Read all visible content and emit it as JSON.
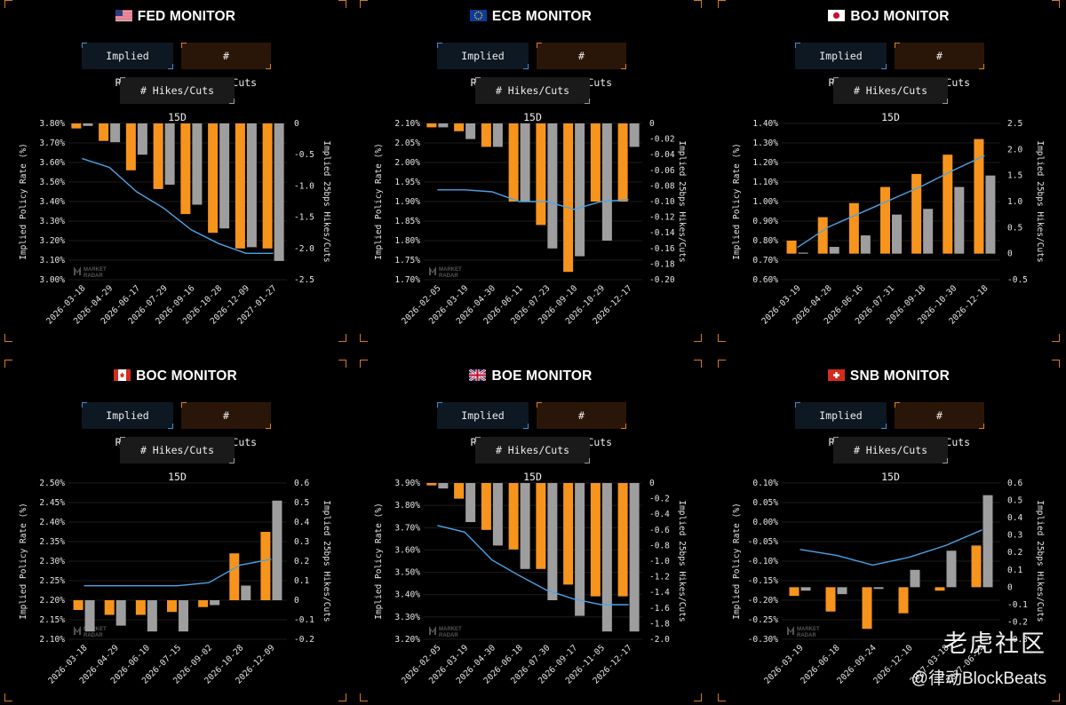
{
  "panels": [
    {
      "title": "FED MONITOR",
      "flag": "us",
      "buttons": {
        "implied": "Implied Rate",
        "hikes": "# Hikes/Cuts",
        "hikes15": "# Hikes/Cuts 15D"
      },
      "chart_data": {
        "type": "bar",
        "categories": [
          "2026-03-18",
          "2026-04-29",
          "2026-06-17",
          "2026-07-29",
          "2026-09-16",
          "2026-10-28",
          "2026-12-09",
          "2027-01-27"
        ],
        "ylabel": "Implied Policy Rate (%)",
        "y2label": "Implied 25bps Hikes/Cuts",
        "yticks": [
          "3.80%",
          "3.70%",
          "3.60%",
          "3.50%",
          "3.40%",
          "3.30%",
          "3.20%",
          "3.10%",
          "3.00%"
        ],
        "y2ticks": [
          "0",
          "-0.5",
          "-1.0",
          "-1.5",
          "-2.0",
          "-2.5"
        ],
        "ylim": [
          3.0,
          3.8
        ],
        "y2lim": [
          -2.5,
          0
        ],
        "series": [
          {
            "name": "# Hikes/Cuts",
            "color": "#f7941d",
            "values": [
              -0.08,
              -0.28,
              -0.75,
              -1.05,
              -1.45,
              -1.75,
              -2.0,
              -2.0
            ]
          },
          {
            "name": "# Hikes/Cuts 15D",
            "color": "#9e9e9e",
            "values": [
              -0.04,
              -0.3,
              -0.5,
              -0.98,
              -1.3,
              -1.68,
              -1.98,
              -2.2
            ]
          },
          {
            "name": "Implied Rate",
            "color": "#4da3e8",
            "values": [
              3.62,
              3.575,
              3.45,
              3.365,
              3.255,
              3.185,
              3.135,
              3.135
            ]
          }
        ],
        "watermark": [
          "MARKET",
          "RADAR"
        ]
      }
    },
    {
      "title": "ECB MONITOR",
      "flag": "eu",
      "buttons": {
        "implied": "Implied Rate",
        "hikes": "# Hikes/Cuts",
        "hikes15": "# Hikes/Cuts 15D"
      },
      "chart_data": {
        "type": "bar",
        "categories": [
          "2026-02-05",
          "2026-03-19",
          "2026-04-30",
          "2026-06-11",
          "2026-07-23",
          "2026-09-10",
          "2026-10-29",
          "2026-12-17"
        ],
        "ylabel": "Implied Policy Rate (%)",
        "y2label": "Implied 25bps Hikes/Cuts",
        "yticks": [
          "2.10%",
          "2.05%",
          "2.00%",
          "1.95%",
          "1.90%",
          "1.85%",
          "1.80%",
          "1.75%",
          "1.70%"
        ],
        "y2ticks": [
          "0",
          "-0.02",
          "-0.04",
          "-0.06",
          "-0.08",
          "-0.10",
          "-0.12",
          "-0.14",
          "-0.16",
          "-0.18",
          "-0.20"
        ],
        "ylim": [
          1.7,
          2.1
        ],
        "y2lim": [
          -0.2,
          0
        ],
        "series": [
          {
            "name": "# Hikes/Cuts",
            "color": "#f7941d",
            "values": [
              -0.005,
              -0.01,
              -0.03,
              -0.1,
              -0.13,
              -0.19,
              -0.1,
              -0.1
            ]
          },
          {
            "name": "# Hikes/Cuts 15D",
            "color": "#9e9e9e",
            "values": [
              -0.005,
              -0.02,
              -0.03,
              -0.1,
              -0.16,
              -0.17,
              -0.15,
              -0.03
            ]
          },
          {
            "name": "Implied Rate",
            "color": "#4da3e8",
            "values": [
              1.93,
              1.93,
              1.925,
              1.9,
              1.9,
              1.88,
              1.9,
              1.905
            ]
          }
        ],
        "watermark": [
          "MARKET",
          "RADAR"
        ]
      }
    },
    {
      "title": "BOJ MONITOR",
      "flag": "jp",
      "buttons": {
        "implied": "Implied Rate",
        "hikes": "# Hikes/Cuts",
        "hikes15": "# Hikes/Cuts 15D"
      },
      "chart_data": {
        "type": "bar",
        "categories": [
          "2026-03-19",
          "2026-04-28",
          "2026-06-16",
          "2026-07-31",
          "2026-09-18",
          "2026-10-30",
          "2026-12-18"
        ],
        "ylabel": "Implied Policy Rate (%)",
        "y2label": "Implied 25bps Hikes/Cuts",
        "yticks": [
          "1.40%",
          "1.30%",
          "1.20%",
          "1.10%",
          "1.00%",
          "0.90%",
          "0.80%",
          "0.70%",
          "0.60%"
        ],
        "y2ticks": [
          "2.5",
          "2.0",
          "1.5",
          "1.0",
          "0.5",
          "0",
          "-0.5"
        ],
        "ylim": [
          0.6,
          1.4
        ],
        "y2lim": [
          -0.5,
          2.5
        ],
        "series": [
          {
            "name": "# Hikes/Cuts",
            "color": "#f7941d",
            "values": [
              0.25,
              0.7,
              0.97,
              1.28,
              1.53,
              1.9,
              2.2
            ]
          },
          {
            "name": "# Hikes/Cuts 15D",
            "color": "#9e9e9e",
            "values": [
              0.02,
              0.13,
              0.35,
              0.75,
              0.86,
              1.28,
              1.5
            ]
          },
          {
            "name": "Implied Rate",
            "color": "#4da3e8",
            "values": [
              0.765,
              0.87,
              0.94,
              1.01,
              1.08,
              1.16,
              1.235
            ]
          }
        ],
        "watermark": []
      }
    },
    {
      "title": "BOC MONITOR",
      "flag": "ca",
      "buttons": {
        "implied": "Implied Rate",
        "hikes": "# Hikes/Cuts",
        "hikes15": "# Hikes/Cuts 15D"
      },
      "chart_data": {
        "type": "bar",
        "categories": [
          "2026-03-18",
          "2026-04-29",
          "2026-06-10",
          "2026-07-15",
          "2026-09-02",
          "2026-10-28",
          "2026-12-09"
        ],
        "ylabel": "Implied Policy Rate (%)",
        "y2label": "Implied 25bps Hikes/Cuts",
        "yticks": [
          "2.50%",
          "2.45%",
          "2.40%",
          "2.35%",
          "2.30%",
          "2.25%",
          "2.20%",
          "2.15%",
          "2.10%"
        ],
        "y2ticks": [
          "0.6",
          "0.5",
          "0.4",
          "0.3",
          "0.2",
          "0.1",
          "0",
          "-0.1",
          "-0.2"
        ],
        "ylim": [
          2.1,
          2.5
        ],
        "y2lim": [
          -0.2,
          0.6
        ],
        "series": [
          {
            "name": "# Hikes/Cuts",
            "color": "#f7941d",
            "values": [
              -0.05,
              -0.075,
              -0.075,
              -0.06,
              -0.035,
              0.24,
              0.35
            ]
          },
          {
            "name": "# Hikes/Cuts 15D",
            "color": "#9e9e9e",
            "values": [
              -0.16,
              -0.13,
              -0.16,
              -0.16,
              -0.025,
              0.075,
              0.51
            ]
          },
          {
            "name": "Implied Rate",
            "color": "#4da3e8",
            "values": [
              2.237,
              2.237,
              2.237,
              2.237,
              2.245,
              2.29,
              2.305
            ]
          }
        ],
        "watermark": [
          "MARKET",
          "RADAR"
        ]
      }
    },
    {
      "title": "BOE MONITOR",
      "flag": "gb",
      "buttons": {
        "implied": "Implied Rate",
        "hikes": "# Hikes/Cuts",
        "hikes15": "# Hikes/Cuts 15D"
      },
      "chart_data": {
        "type": "bar",
        "categories": [
          "2026-02-05",
          "2026-03-19",
          "2026-04-30",
          "2026-06-18",
          "2026-07-30",
          "2026-09-17",
          "2026-11-05",
          "2026-12-17"
        ],
        "ylabel": "Implied Policy Rate (%)",
        "y2label": "Implied 25bps Hikes/Cuts",
        "yticks": [
          "3.90%",
          "3.80%",
          "3.70%",
          "3.60%",
          "3.50%",
          "3.40%",
          "3.30%",
          "3.20%"
        ],
        "y2ticks": [
          "0",
          "-0.2",
          "-0.4",
          "-0.6",
          "-0.8",
          "-1.0",
          "-1.2",
          "-1.4",
          "-1.6",
          "-1.8",
          "-2.0"
        ],
        "ylim": [
          3.2,
          3.9
        ],
        "y2lim": [
          -2.0,
          0
        ],
        "series": [
          {
            "name": "# Hikes/Cuts",
            "color": "#f7941d",
            "values": [
              -0.03,
              -0.2,
              -0.6,
              -0.85,
              -1.1,
              -1.3,
              -1.45,
              -1.45
            ]
          },
          {
            "name": "# Hikes/Cuts 15D",
            "color": "#9e9e9e",
            "values": [
              -0.07,
              -0.5,
              -0.8,
              -1.1,
              -1.5,
              -1.7,
              -1.9,
              -1.9
            ]
          },
          {
            "name": "Implied Rate",
            "color": "#4da3e8",
            "values": [
              3.71,
              3.68,
              3.555,
              3.485,
              3.42,
              3.38,
              3.355,
              3.355
            ]
          }
        ],
        "watermark": [
          "MARKET",
          "RADAR"
        ]
      }
    },
    {
      "title": "SNB MONITOR",
      "flag": "ch",
      "buttons": {
        "implied": "Implied Rate",
        "hikes": "# Hikes/Cuts",
        "hikes15": "# Hikes/Cuts 15D"
      },
      "chart_data": {
        "type": "bar",
        "categories": [
          "2026-03-19",
          "2026-06-18",
          "2026-09-24",
          "2026-12-10",
          "2027-03-18",
          "2027-06-24"
        ],
        "ylabel": "Implied Policy Rate (%)",
        "y2label": "Implied 25bps Hikes/Cuts",
        "yticks": [
          "0.10%",
          "0.05%",
          "0.00%",
          "-0.05%",
          "-0.10%",
          "-0.15%",
          "-0.20%",
          "-0.25%",
          "-0.30%"
        ],
        "y2ticks": [
          "0.6",
          "0.5",
          "0.4",
          "0.3",
          "0.2",
          "0.1",
          "0",
          "-0.1",
          "-0.2",
          "-0.3"
        ],
        "ylim": [
          -0.3,
          0.1
        ],
        "y2lim": [
          -0.3,
          0.6
        ],
        "series": [
          {
            "name": "# Hikes/Cuts",
            "color": "#f7941d",
            "values": [
              -0.05,
              -0.14,
              -0.24,
              -0.15,
              -0.02,
              0.24
            ]
          },
          {
            "name": "# Hikes/Cuts 15D",
            "color": "#9e9e9e",
            "values": [
              -0.02,
              -0.04,
              -0.01,
              0.1,
              0.21,
              0.53
            ]
          },
          {
            "name": "Implied Rate",
            "color": "#4da3e8",
            "values": [
              -0.07,
              -0.085,
              -0.11,
              -0.09,
              -0.06,
              -0.02
            ]
          }
        ],
        "watermark": [
          "MARKET",
          "RADAR"
        ]
      }
    }
  ],
  "footer": {
    "line1": "老虎社区",
    "line2": "@律动BlockBeats"
  }
}
